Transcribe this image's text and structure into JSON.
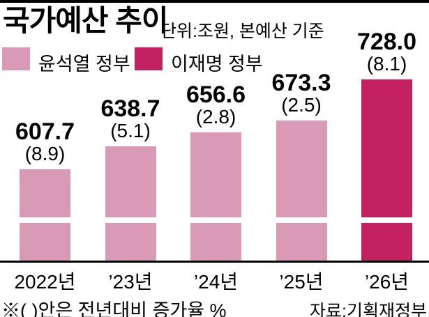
{
  "header": {
    "title": "국가예산 추이",
    "unit_note": "단위:조원, 본예산 기준"
  },
  "legend": [
    {
      "label": "윤석열 정부",
      "color": "#d99ab6"
    },
    {
      "label": "이재명 정부",
      "color": "#c32160"
    }
  ],
  "chart_data": {
    "type": "bar",
    "title": "국가예산 추이",
    "unit": "조원",
    "basis_note": "본예산 기준",
    "legend_position": "top",
    "grid": false,
    "axis_break": true,
    "ylim": [
      485,
      760
    ],
    "categories": [
      "2022년",
      "’23년",
      "’24년",
      "’25년",
      "’26년"
    ],
    "bars": [
      {
        "category": "2022년",
        "value": 607.7,
        "value_label": "607.7",
        "growth_label": "(8.9)",
        "growth_pct": 8.9,
        "group": "윤석열 정부"
      },
      {
        "category": "’23년",
        "value": 638.7,
        "value_label": "638.7",
        "growth_label": "(5.1)",
        "growth_pct": 5.1,
        "group": "윤석열 정부"
      },
      {
        "category": "’24년",
        "value": 656.6,
        "value_label": "656.6",
        "growth_label": "(2.8)",
        "growth_pct": 2.8,
        "group": "윤석열 정부"
      },
      {
        "category": "’25년",
        "value": 673.3,
        "value_label": "673.3",
        "growth_label": "(2.5)",
        "growth_pct": 2.5,
        "group": "윤석열 정부"
      },
      {
        "category": "’26년",
        "value": 728.0,
        "value_label": "728.0",
        "growth_label": "(8.1)",
        "growth_pct": 8.1,
        "group": "이재명 정부"
      }
    ]
  },
  "footer": {
    "note": "※( )안은 전년대비 증가율 %",
    "source": "자료:기획재정부"
  }
}
